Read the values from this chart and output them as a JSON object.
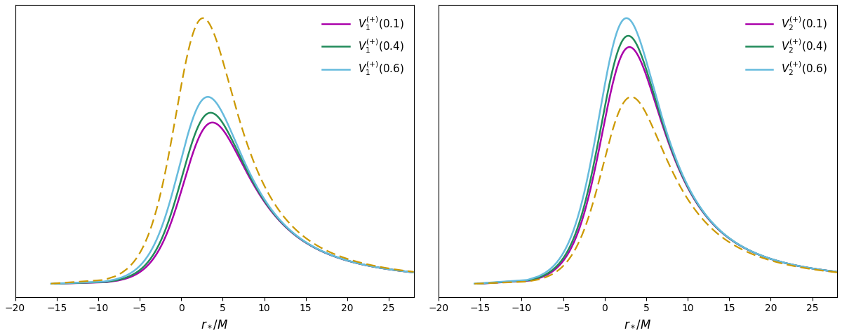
{
  "xlim": [
    -20,
    28
  ],
  "xticks": [
    -20,
    -15,
    -10,
    -5,
    0,
    5,
    10,
    15,
    20,
    25
  ],
  "xlabel": "$r_*/M$",
  "colors": {
    "q01": "#AA00AA",
    "q04": "#228B5A",
    "q06": "#66BBDD",
    "dashed": "#CC9900"
  },
  "charges": [
    0.1,
    0.4,
    0.6
  ],
  "M": 1.0,
  "legend_labels_left": [
    "$V_1^{(+)}(0.1)$",
    "$V_1^{(+)}(0.4)$",
    "$V_1^{(+)}(0.6)$"
  ],
  "legend_labels_right": [
    "$V_2^{(+)}(0.1)$",
    "$V_2^{(+)}(0.4)$",
    "$V_2^{(+)}(0.6)$"
  ]
}
